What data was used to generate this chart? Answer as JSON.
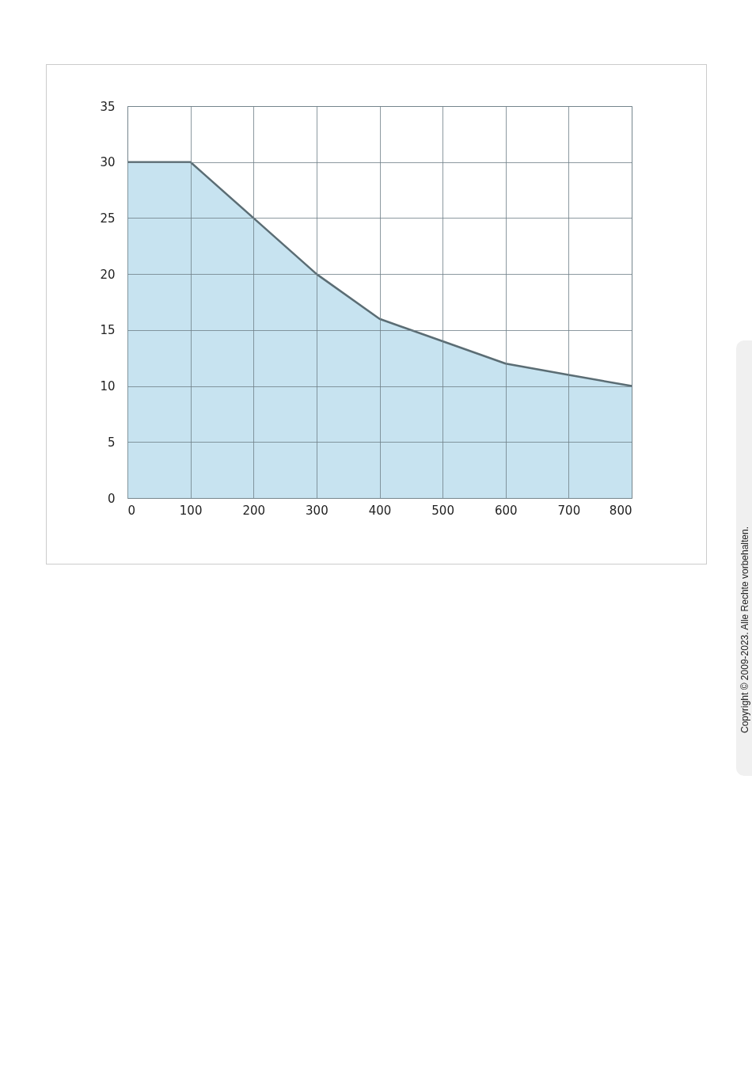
{
  "chart_data": {
    "type": "area",
    "x": [
      0,
      100,
      200,
      300,
      400,
      500,
      600,
      700,
      800
    ],
    "series": [
      {
        "color": "#c7e3f0",
        "values": [
          30,
          30,
          25,
          20,
          16,
          14,
          12,
          11,
          10
        ]
      }
    ],
    "xlim": [
      0,
      800
    ],
    "xticks": [
      0,
      100,
      200,
      300,
      400,
      500,
      600,
      700,
      800
    ],
    "ylim": [
      0,
      35
    ],
    "yticks": [
      0,
      5,
      10,
      15,
      20,
      25,
      30,
      35
    ],
    "grid": true,
    "annotations": [
      "Copyright © 2009-2023. Alle Rechte vorbehalten."
    ]
  }
}
